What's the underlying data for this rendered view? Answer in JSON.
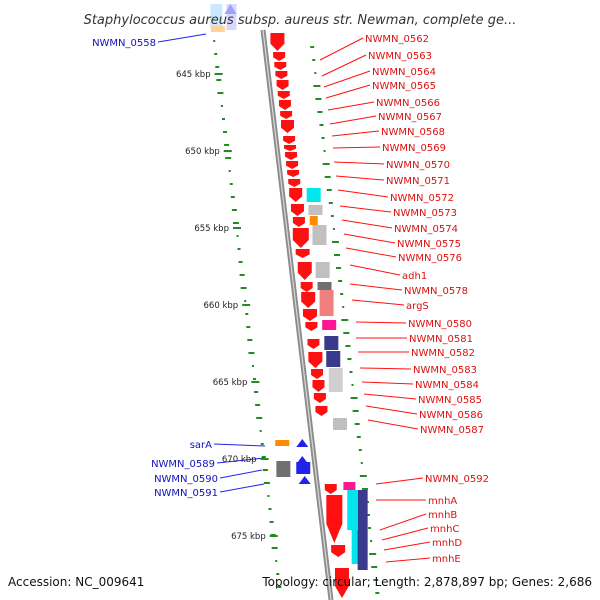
{
  "title": "Staphylococcus aureus subsp. aureus str. Newman, complete ge...",
  "footer": {
    "accession": "Accession: NC_009641",
    "summary": "Topology: circular; Length: 2,878,897 bp; Genes: 2,686"
  },
  "ticks": [
    "645 kbp",
    "650 kbp",
    "655 kbp",
    "660 kbp",
    "665 kbp",
    "670 kbp",
    "675 kbp"
  ],
  "labels_right": [
    "NWMN_0562",
    "NWMN_0563",
    "NWMN_0564",
    "NWMN_0565",
    "NWMN_0566",
    "NWMN_0567",
    "NWMN_0568",
    "NWMN_0569",
    "NWMN_0570",
    "NWMN_0571",
    "NWMN_0572",
    "NWMN_0573",
    "NWMN_0574",
    "NWMN_0575",
    "NWMN_0576",
    "adh1",
    "NWMN_0578",
    "argS",
    "NWMN_0580",
    "NWMN_0581",
    "NWMN_0582",
    "NWMN_0583",
    "NWMN_0584",
    "NWMN_0585",
    "NWMN_0586",
    "NWMN_0587",
    "NWMN_0592",
    "mnhA",
    "mnhB",
    "mnhC",
    "mnhD",
    "mnhE"
  ],
  "labels_left": [
    "NWMN_0558",
    "sarA",
    "NWMN_0589",
    "NWMN_0590",
    "NWMN_0591"
  ],
  "colors": {
    "gene_red": "#ff1010",
    "gene_blue": "#2222ee",
    "backbone": "#8c8c8c",
    "gc_skew_dots": "#228b22",
    "cyan": "#00e5ee",
    "light_gray": "#c0c0c0",
    "dark_gray": "#707070",
    "orange": "#ff8c00",
    "magenta": "#ff1493",
    "navy": "#3a3a8c",
    "salmon": "#f08080"
  }
}
